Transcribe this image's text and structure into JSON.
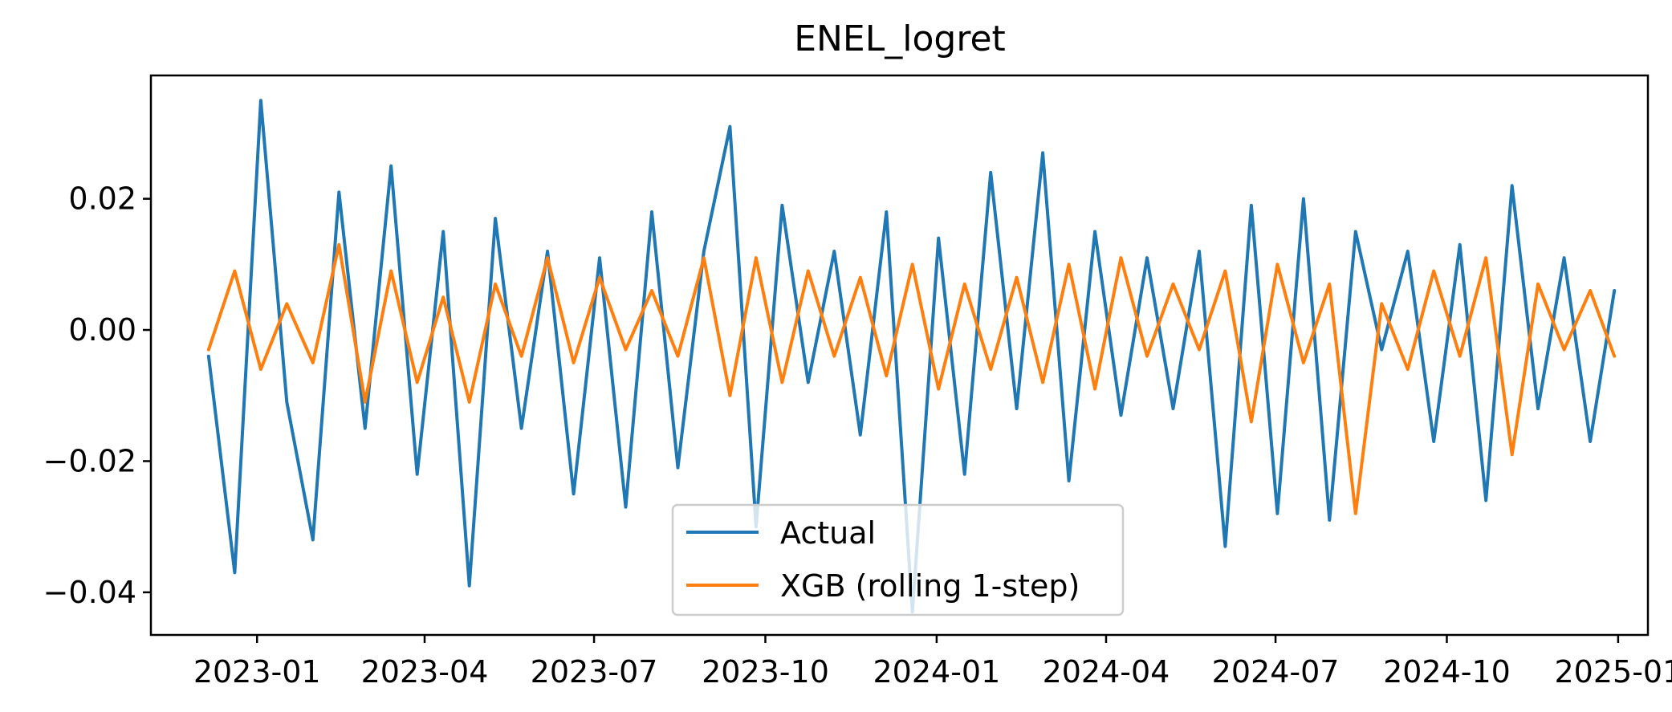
{
  "chart_data": {
    "type": "line",
    "title": "ENEL_logret",
    "xlabel": "",
    "ylabel": "",
    "x_ticks": [
      "2023-01-01",
      "2023-04-01",
      "2023-07-01",
      "2023-10-01",
      "2024-01-01",
      "2024-04-01",
      "2024-07-01",
      "2024-10-01",
      "2025-01-01"
    ],
    "x_tick_labels": [
      "2023-01",
      "2023-04",
      "2023-07",
      "2023-10",
      "2024-01",
      "2024-04",
      "2024-07",
      "2024-10",
      "2025-01"
    ],
    "y_ticks": [
      -0.04,
      -0.02,
      0.0,
      0.02
    ],
    "y_tick_labels": [
      "−0.04",
      "−0.02",
      "0.00",
      "0.02"
    ],
    "xlim": [
      "2022-11-05",
      "2025-01-17"
    ],
    "ylim": [
      -0.0465,
      0.0388
    ],
    "grid": false,
    "legend_position": "lower center",
    "x": [
      "2022-12-06",
      "2022-12-20",
      "2023-01-03",
      "2023-01-17",
      "2023-01-31",
      "2023-02-14",
      "2023-02-28",
      "2023-03-14",
      "2023-03-28",
      "2023-04-11",
      "2023-04-25",
      "2023-05-09",
      "2023-05-23",
      "2023-06-06",
      "2023-06-20",
      "2023-07-04",
      "2023-07-18",
      "2023-08-01",
      "2023-08-15",
      "2023-08-29",
      "2023-09-12",
      "2023-09-26",
      "2023-10-10",
      "2023-10-24",
      "2023-11-07",
      "2023-11-21",
      "2023-12-05",
      "2023-12-19",
      "2024-01-02",
      "2024-01-16",
      "2024-01-30",
      "2024-02-13",
      "2024-02-27",
      "2024-03-12",
      "2024-03-26",
      "2024-04-09",
      "2024-04-23",
      "2024-05-07",
      "2024-05-21",
      "2024-06-04",
      "2024-06-18",
      "2024-07-02",
      "2024-07-16",
      "2024-07-30",
      "2024-08-13",
      "2024-08-27",
      "2024-09-10",
      "2024-09-24",
      "2024-10-08",
      "2024-10-22",
      "2024-11-05",
      "2024-11-19",
      "2024-12-03",
      "2024-12-17",
      "2024-12-30"
    ],
    "series": [
      {
        "name": "Actual",
        "color": "#1f77b4",
        "values": [
          -0.004,
          -0.037,
          0.035,
          -0.011,
          -0.032,
          0.021,
          -0.015,
          0.025,
          -0.022,
          0.015,
          -0.039,
          0.017,
          -0.015,
          0.012,
          -0.025,
          0.011,
          -0.027,
          0.018,
          -0.021,
          0.012,
          0.031,
          -0.03,
          0.019,
          -0.008,
          0.012,
          -0.016,
          0.018,
          -0.043,
          0.014,
          -0.022,
          0.024,
          -0.012,
          0.027,
          -0.023,
          0.015,
          -0.013,
          0.011,
          -0.012,
          0.012,
          -0.033,
          0.019,
          -0.028,
          0.02,
          -0.029,
          0.015,
          -0.003,
          0.012,
          -0.017,
          0.013,
          -0.026,
          0.022,
          -0.012,
          0.011,
          -0.017,
          0.006
        ]
      },
      {
        "name": "XGB (rolling 1-step)",
        "color": "#ff7f0e",
        "values": [
          -0.003,
          0.009,
          -0.006,
          0.004,
          -0.005,
          0.013,
          -0.011,
          0.009,
          -0.008,
          0.005,
          -0.011,
          0.007,
          -0.004,
          0.011,
          -0.005,
          0.008,
          -0.003,
          0.006,
          -0.004,
          0.011,
          -0.01,
          0.011,
          -0.008,
          0.009,
          -0.004,
          0.008,
          -0.007,
          0.01,
          -0.009,
          0.007,
          -0.006,
          0.008,
          -0.008,
          0.01,
          -0.009,
          0.011,
          -0.004,
          0.007,
          -0.003,
          0.009,
          -0.014,
          0.01,
          -0.005,
          0.007,
          -0.028,
          0.004,
          -0.006,
          0.009,
          -0.004,
          0.011,
          -0.019,
          0.007,
          -0.003,
          0.006,
          -0.004
        ]
      }
    ]
  }
}
